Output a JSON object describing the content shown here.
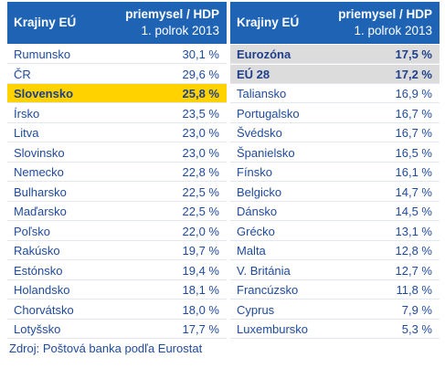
{
  "tables": [
    {
      "header": [
        "Krajiny EÚ",
        "priemysel / HDP",
        "1. polrok 2013"
      ],
      "rows": [
        [
          "Rumunsko",
          "30,1 %"
        ],
        [
          "ČR",
          "29,6 %"
        ],
        [
          "Slovensko",
          "25,8 %"
        ],
        [
          "Írsko",
          "23,5 %"
        ],
        [
          "Litva",
          "23,0 %"
        ],
        [
          "Slovinsko",
          "23,0 %"
        ],
        [
          "Nemecko",
          "22,8 %"
        ],
        [
          "Bulharsko",
          "22,5 %"
        ],
        [
          "Maďarsko",
          "22,5 %"
        ],
        [
          "Poľsko",
          "22,0 %"
        ],
        [
          "Rakúsko",
          "19,7 %"
        ],
        [
          "Estónsko",
          "19,4 %"
        ],
        [
          "Holandsko",
          "18,1 %"
        ],
        [
          "Chorvátsko",
          "18,0 %"
        ],
        [
          "Lotyšsko",
          "17,7 %"
        ]
      ]
    },
    {
      "header": [
        "Krajiny EÚ",
        "priemysel / HDP",
        "1. polrok 2013"
      ],
      "rows": [
        [
          "Eurozóna",
          "17,5 %"
        ],
        [
          "EÚ 28",
          "17,2 %"
        ],
        [
          "Taliansko",
          "16,9 %"
        ],
        [
          "Portugalsko",
          "16,7 %"
        ],
        [
          "Švédsko",
          "16,7 %"
        ],
        [
          "Španielsko",
          "16,5 %"
        ],
        [
          "Fínsko",
          "16,1 %"
        ],
        [
          "Belgicko",
          "14,7 %"
        ],
        [
          "Dánsko",
          "14,5 %"
        ],
        [
          "Grécko",
          "13,1 %"
        ],
        [
          "Malta",
          "12,8 %"
        ],
        [
          "V. Británia",
          "12,7 %"
        ],
        [
          "Francúzsko",
          "11,8 %"
        ],
        [
          "Cyprus",
          "7,9 %"
        ],
        [
          "Luxembursko",
          "5,3 %"
        ]
      ]
    }
  ],
  "source": "Zdroj: Poštová banka podľa Eurostat"
}
